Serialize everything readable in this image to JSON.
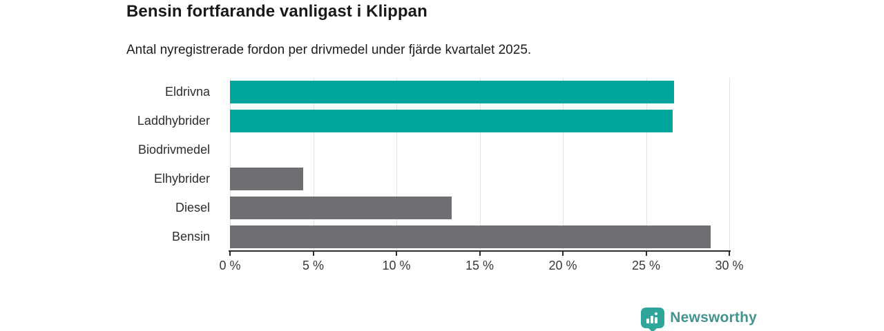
{
  "chart_data": {
    "type": "bar",
    "orientation": "horizontal",
    "title": "Bensin fortfarande vanligast i Klippan",
    "subtitle": "Antal nyregistrerade fordon per drivmedel under fjärde kvartalet 2025.",
    "categories": [
      "Eldrivna",
      "Laddhybrider",
      "Biodrivmedel",
      "Elhybrider",
      "Diesel",
      "Bensin"
    ],
    "values": [
      26.7,
      26.6,
      0,
      4.4,
      13.3,
      28.9
    ],
    "unit": "%",
    "bar_colors": [
      "#00A59B",
      "#00A59B",
      "#00A59B",
      "#6F6E73",
      "#6F6E73",
      "#6F6E73"
    ],
    "xlim": [
      0,
      30
    ],
    "x_ticks": [
      {
        "value": 0,
        "label": "0 %"
      },
      {
        "value": 5,
        "label": "5 %"
      },
      {
        "value": 10,
        "label": "10 %"
      },
      {
        "value": 15,
        "label": "15 %"
      },
      {
        "value": 20,
        "label": "20 %"
      },
      {
        "value": 25,
        "label": "25 %"
      },
      {
        "value": 30,
        "label": "30 %"
      }
    ],
    "grid": "vertical",
    "legend": "none",
    "xlabel": "",
    "ylabel": ""
  },
  "colors": {
    "teal_bar": "#00A59B",
    "gray_bar": "#6F6E73",
    "axis": "#2B2B2B",
    "gridline": "#E2E2E2",
    "title_text": "#1A1A1A",
    "label_text": "#2E2E2E",
    "background": "#FFFFFF"
  },
  "footer": {
    "brand": "Newsworthy",
    "brand_text_color": "#43938E",
    "badge_color": "#2FA69B"
  }
}
